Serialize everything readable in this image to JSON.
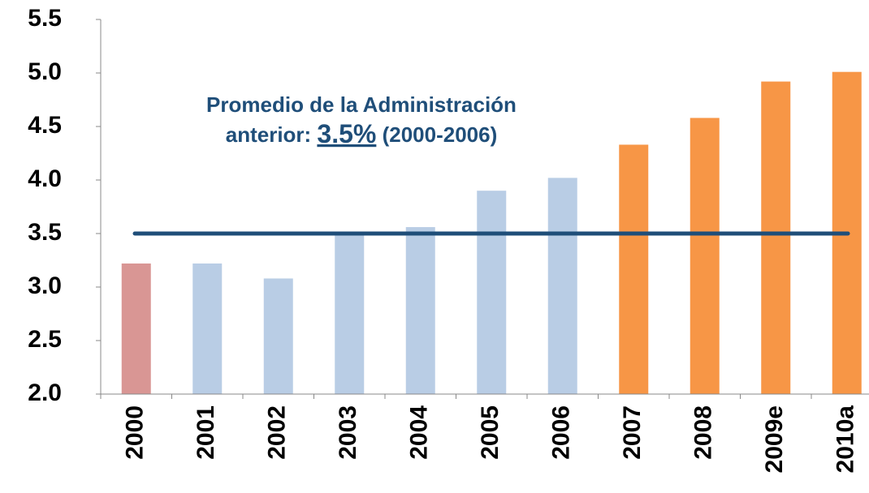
{
  "chart_data": {
    "type": "bar",
    "categories": [
      "2000",
      "2001",
      "2002",
      "2003",
      "2004",
      "2005",
      "2006",
      "2007",
      "2008",
      "2009e",
      "2010a"
    ],
    "values": [
      3.22,
      3.22,
      3.08,
      3.5,
      3.56,
      3.9,
      4.02,
      4.33,
      4.58,
      4.92,
      5.01
    ],
    "colors": [
      "#d99694",
      "#b9cde5",
      "#b9cde5",
      "#b9cde5",
      "#b9cde5",
      "#b9cde5",
      "#b9cde5",
      "#f79646",
      "#f79646",
      "#f79646",
      "#f79646"
    ],
    "ylim": [
      2.0,
      5.5
    ],
    "yticks": [
      {
        "value": 2,
        "label": "2.0"
      },
      2.5,
      {
        "value": 3,
        "label": "3.0"
      },
      3.5,
      {
        "value": 4,
        "label": "4.0"
      },
      4.5,
      {
        "value": 5,
        "label": "5.0"
      },
      5.5
    ],
    "reference_line": {
      "value": 3.5,
      "color": "#1f4e79"
    },
    "annotation": {
      "line1": "Promedio de la Administración",
      "prefix": "anterior: ",
      "highlight": "3.5%",
      "suffix": " (2000-2006)",
      "color": "#1f4e79"
    }
  }
}
